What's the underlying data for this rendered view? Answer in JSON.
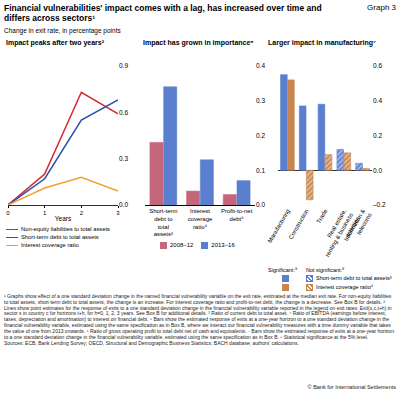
{
  "header": {
    "title": "Financial vulnerabilities' impact comes with a lag, has increased over time and differs across sectors¹",
    "graph_label": "Graph 3",
    "subtitle": "Change in exit rate, in percentage points"
  },
  "chart_data": [
    {
      "type": "line",
      "title": "Impact peaks after two years²",
      "x": [
        0,
        1,
        2,
        3
      ],
      "xlabel": "Years",
      "xlim": [
        0,
        3
      ],
      "xticks": [
        0,
        1,
        2,
        3
      ],
      "ylim": [
        0,
        0.9
      ],
      "yticks": [
        {
          "value": 0,
          "label": "0.0"
        },
        0.3,
        0.6,
        0.9
      ],
      "grid": false,
      "series": [
        {
          "name": "Non-equity liabilities to total assets",
          "color": "#d7262b",
          "values": [
            0,
            0.2,
            0.73,
            0.59
          ]
        },
        {
          "name": "Short-term debt to total assets",
          "color": "#2e4fa8",
          "values": [
            0,
            0.17,
            0.55,
            0.68
          ]
        },
        {
          "name": "Interest coverage ratio",
          "color": "#f0a030",
          "values": [
            0,
            0.11,
            0.18,
            0.09
          ]
        }
      ]
    },
    {
      "type": "bar",
      "title": "Impact has grown in importance⁵",
      "categories": [
        "Short-term debt to total assets³",
        "Interest coverage ratio⁴",
        "Profit-to-net debt⁶"
      ],
      "ylim": [
        0,
        0.4
      ],
      "yticks": [
        {
          "value": 0,
          "label": "0.0"
        },
        0.1,
        0.2,
        0.3,
        0.4
      ],
      "grid": false,
      "series": [
        {
          "name": "2008–12",
          "color": "#c5677a",
          "values": [
            0.18,
            0.04,
            0.03
          ]
        },
        {
          "name": "2013–16",
          "color": "#5b7fcf",
          "values": [
            0.34,
            0.13,
            0.07
          ]
        }
      ]
    },
    {
      "type": "bar",
      "title": "Larger impact in manufacturing⁷",
      "categories": [
        "Manufacturing",
        "Construction",
        "Trade",
        "Real estate, renting & business activities",
        "Information & telecoms"
      ],
      "ylim": [
        -0.2,
        0.6
      ],
      "yticks": [
        {
          "value": -0.2,
          "label": "–0.2"
        },
        {
          "value": 0,
          "label": "0.0"
        },
        0.2,
        0.4,
        0.6
      ],
      "grid": false,
      "significance_labels": {
        "significant": "Significant:⁸",
        "not_significant": "Not significant:⁸"
      },
      "series": [
        {
          "name": "Short-term debt to total assets³",
          "color": "#5b7fcf",
          "values": [
            0.55,
            0.37,
            0.38,
            0.12,
            0.04
          ],
          "significant": [
            true,
            true,
            true,
            false,
            false
          ]
        },
        {
          "name": "Interest coverage ratio⁴",
          "color": "#c8864f",
          "values": [
            0.52,
            -0.17,
            0.09,
            0.1,
            0.01
          ],
          "significant": [
            true,
            false,
            false,
            false,
            false
          ]
        }
      ]
    }
  ],
  "footer": {
    "footnotes": "¹ Graphs show effect of a one standard deviation change in the named financial vulnerability variable on the exit rate, estimated at the median exit rate. For non-equity liabilities to total assets, short-term debt to total assets, the change is an increase. For interest coverage ratio and profit-to-net debt, the change is a decrease. See Box B for details. ² Lines show point estimates for the response of exits to a one standard deviation change in the financial vulnerability variable reported in the legend on exit rates: Exit(s,c,t+h) in sector s in country c for horizons t+h, for h=0, 1, 2, 3 years. See Box B for additional details. ³ Ratio of current debt to total asset. ⁴ Ratio of EBITDA (earnings before interest, taxes, depreciation and amortisation) to interest on financial debt. ⁵ Bars show the estimated response of exits at a one-year horizon to a one standard deviation change in the financial vulnerability variable, estimated using the same specification as in Box B, where we interact our financial vulnerability measures with a time dummy variable that takes the value of one from 2013 onwards. ⁶ Ratio of gross operating profit to total debt net of cash and equivalents. ⁷ Bars show the estimated response of exits at a one-year horizon to a one standard deviation change in the financial vulnerability variable, estimated using the same specification as in Box B. ⁸ Statistical significance at the 5% level.",
    "sources": "Sources: ECB, Bank Lending Survey; OECD, Structural and Demographic Business Statistics; BACH database; authors' calculations.",
    "copyright": "© Bank for International Settlements"
  }
}
